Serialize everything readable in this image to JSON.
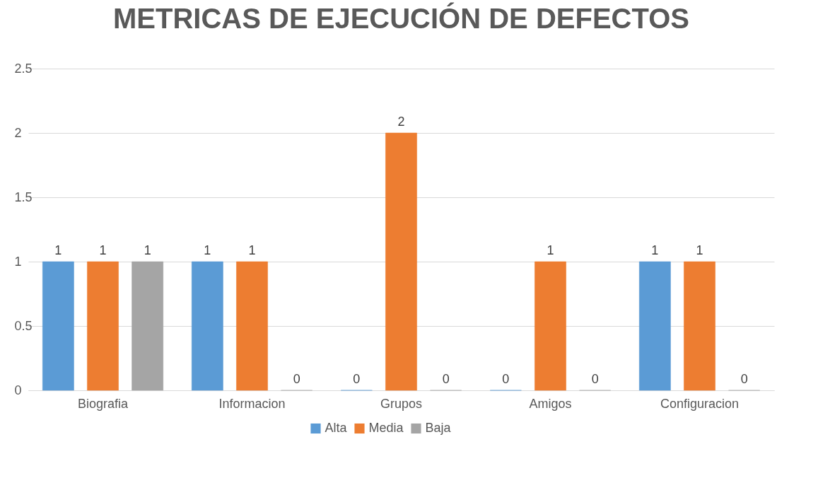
{
  "chart_data": {
    "type": "bar",
    "title": "METRICAS DE EJECUCIÓN DE DEFECTOS",
    "categories": [
      "Biografia",
      "Informacion",
      "Grupos",
      "Amigos",
      "Configuracion"
    ],
    "series": [
      {
        "name": "Alta",
        "color": "#5b9bd5",
        "values": [
          1,
          1,
          0,
          0,
          1
        ]
      },
      {
        "name": "Media",
        "color": "#ed7d31",
        "values": [
          1,
          1,
          2,
          1,
          1
        ]
      },
      {
        "name": "Baja",
        "color": "#a5a5a5",
        "values": [
          1,
          0,
          0,
          0,
          0
        ]
      }
    ],
    "ylim": [
      0,
      2.5
    ],
    "yticks": [
      0,
      0.5,
      1,
      1.5,
      2,
      2.5
    ],
    "grid": "y",
    "legend": "bottom",
    "data_labels": true
  }
}
